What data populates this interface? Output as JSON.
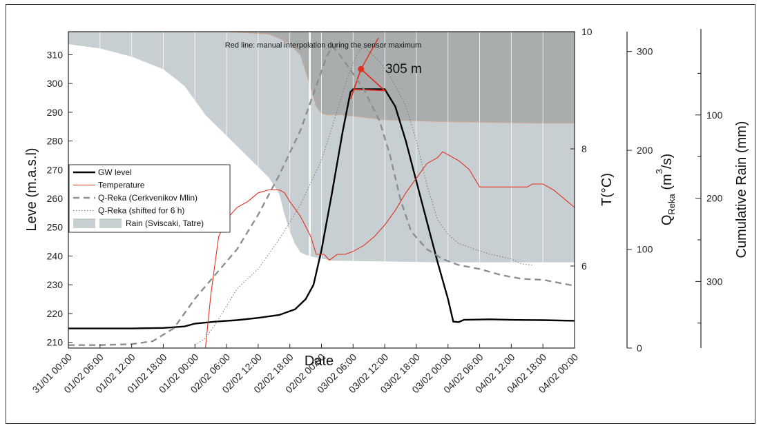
{
  "chart_data": {
    "type": "line",
    "x_axis": {
      "label": "Date",
      "tick_labels": [
        "31/01 00:00",
        "01/02 06:00",
        "01/02 12:00",
        "01/02 18:00",
        "01/02 00:00",
        "02/02 06:00",
        "02/02 12:00",
        "02/02 18:00",
        "02/02 00:00",
        "03/02 06:00",
        "03/02 12:00",
        "03/02 18:00",
        "03/02 00:00",
        "04/02 06:00",
        "04/02 12:00",
        "04/02 18:00",
        "04/02 00:00"
      ],
      "range_hours": [
        0,
        96
      ]
    },
    "y_left": {
      "label": "Leve (m.a.s.l)",
      "range": [
        208,
        318
      ],
      "ticks": [
        210,
        220,
        230,
        240,
        250,
        260,
        270,
        280,
        290,
        300,
        310
      ]
    },
    "y_temp": {
      "label": "T(°C)",
      "range": [
        4.6,
        10
      ],
      "ticks": [
        6,
        8,
        10
      ]
    },
    "y_q": {
      "label_main": "Q",
      "label_sub": "Reka",
      "label_unit_pre": " (m",
      "label_unit_sup": "3",
      "label_unit_post": "/s)",
      "range": [
        0,
        320
      ],
      "ticks": [
        0,
        100,
        200,
        300
      ]
    },
    "y_rain": {
      "label": "Cumulative Rain (mm)",
      "range": [
        0,
        380
      ],
      "reversed": true,
      "ticks": [
        100,
        200,
        300
      ]
    },
    "annotations": {
      "note": "Red line: manual interpolation during the sensor maximum",
      "peak_label": "305 m",
      "peak_point": {
        "x": 55.5,
        "y": 305
      }
    },
    "legend": {
      "placement": "left-middle",
      "entries": [
        "GW level",
        "Temperature",
        "Q-Reka (Cerkvenikov Mlin)",
        "Q-Reka (shifted  for 6 h)",
        "Rain (Sviscaki, Tatre)"
      ]
    },
    "series": [
      {
        "name": "GW level",
        "axis": "y_left",
        "color": "#000000",
        "points": [
          [
            0,
            214.8
          ],
          [
            6,
            214.8
          ],
          [
            12,
            214.8
          ],
          [
            18,
            215
          ],
          [
            22,
            215.5
          ],
          [
            24,
            216.5
          ],
          [
            28,
            217.2
          ],
          [
            32,
            217.7
          ],
          [
            36,
            218.5
          ],
          [
            40,
            219.5
          ],
          [
            43,
            221.5
          ],
          [
            45,
            225
          ],
          [
            46.5,
            230
          ],
          [
            48,
            242
          ],
          [
            50,
            262
          ],
          [
            52,
            283
          ],
          [
            53.5,
            297
          ],
          [
            54,
            298
          ],
          [
            60,
            298
          ],
          [
            62,
            292
          ],
          [
            64,
            280
          ],
          [
            66,
            266
          ],
          [
            68,
            252
          ],
          [
            70,
            238
          ],
          [
            72,
            225
          ],
          [
            73,
            217.2
          ],
          [
            74,
            217
          ],
          [
            75,
            217.8
          ],
          [
            80,
            218
          ],
          [
            84,
            217.8
          ],
          [
            90,
            217.7
          ],
          [
            96,
            217.5
          ]
        ]
      },
      {
        "name": "Manual interpolation",
        "axis": "y_left",
        "color": "#e03020",
        "points": [
          [
            53.5,
            294.5
          ],
          [
            55.5,
            305
          ],
          [
            60,
            297.5
          ],
          [
            54,
            298
          ]
        ]
      },
      {
        "name": "Temperature",
        "axis": "y_temp",
        "color": "#e03020",
        "points": [
          [
            26,
            4.6
          ],
          [
            27,
            5.5
          ],
          [
            28.5,
            6.5
          ],
          [
            30,
            6.8
          ],
          [
            32,
            7.0
          ],
          [
            34,
            7.1
          ],
          [
            36,
            7.25
          ],
          [
            38,
            7.3
          ],
          [
            40,
            7.3
          ],
          [
            41,
            7.25
          ],
          [
            42,
            7.1
          ],
          [
            44,
            6.85
          ],
          [
            46,
            6.5
          ],
          [
            47,
            6.2
          ],
          [
            48.5,
            6.2
          ],
          [
            49.5,
            6.1
          ],
          [
            51,
            6.2
          ],
          [
            52.5,
            6.2
          ],
          [
            54,
            6.25
          ],
          [
            56,
            6.35
          ],
          [
            58,
            6.5
          ],
          [
            60,
            6.7
          ],
          [
            62,
            6.95
          ],
          [
            64,
            7.25
          ],
          [
            66,
            7.5
          ],
          [
            68,
            7.75
          ],
          [
            70,
            7.85
          ],
          [
            71,
            7.95
          ],
          [
            72,
            7.9
          ],
          [
            73,
            7.85
          ],
          [
            74,
            7.8
          ],
          [
            76,
            7.65
          ],
          [
            78,
            7.35
          ],
          [
            80,
            7.35
          ],
          [
            84,
            7.35
          ],
          [
            87,
            7.35
          ],
          [
            88,
            7.4
          ],
          [
            90,
            7.4
          ],
          [
            92,
            7.3
          ],
          [
            94,
            7.15
          ],
          [
            96,
            7.0
          ]
        ]
      },
      {
        "name": "Q-Reka (Cerkvenikov Mlin)",
        "axis": "y_q",
        "color": "#8a8f91",
        "points": [
          [
            0,
            3
          ],
          [
            6,
            3
          ],
          [
            12,
            4
          ],
          [
            16,
            7
          ],
          [
            20,
            20
          ],
          [
            24,
            50
          ],
          [
            28,
            75
          ],
          [
            32,
            100
          ],
          [
            36,
            135
          ],
          [
            40,
            175
          ],
          [
            44,
            220
          ],
          [
            47,
            265
          ],
          [
            49,
            295
          ],
          [
            50,
            305
          ],
          [
            51,
            300
          ],
          [
            53,
            285
          ],
          [
            56,
            262
          ],
          [
            59,
            230
          ],
          [
            61,
            195
          ],
          [
            63,
            150
          ],
          [
            65,
            118
          ],
          [
            68,
            100
          ],
          [
            71,
            90
          ],
          [
            74,
            84
          ],
          [
            78,
            80
          ],
          [
            82,
            74
          ],
          [
            86,
            70
          ],
          [
            90,
            69
          ],
          [
            93,
            66
          ],
          [
            96,
            63
          ]
        ]
      },
      {
        "name": "Q-Reka (shifted  for 6 h)",
        "axis": "y_q",
        "color": "#777777",
        "points": [
          [
            24,
            3
          ],
          [
            26,
            10
          ],
          [
            28,
            25
          ],
          [
            32,
            60
          ],
          [
            36,
            80
          ],
          [
            40,
            110
          ],
          [
            44,
            145
          ],
          [
            48,
            190
          ],
          [
            51,
            240
          ],
          [
            53,
            275
          ],
          [
            55,
            300
          ],
          [
            56,
            305
          ],
          [
            57,
            300
          ],
          [
            59,
            290
          ],
          [
            61,
            275
          ],
          [
            64,
            245
          ],
          [
            66,
            210
          ],
          [
            68,
            165
          ],
          [
            70,
            130
          ],
          [
            72,
            115
          ],
          [
            74,
            106
          ],
          [
            77,
            100
          ],
          [
            80,
            95
          ],
          [
            84,
            90
          ],
          [
            86,
            85
          ],
          [
            88,
            84
          ]
        ]
      }
    ],
    "rain_areas": [
      {
        "name": "Rain (Sviscaki, Tatre)",
        "station": "Tatre",
        "axis": "y_rain",
        "color": "#c7cfd2",
        "points": [
          [
            0,
            15
          ],
          [
            6,
            20
          ],
          [
            12,
            30
          ],
          [
            18,
            45
          ],
          [
            22,
            65
          ],
          [
            26,
            100
          ],
          [
            30,
            125
          ],
          [
            34,
            150
          ],
          [
            38,
            175
          ],
          [
            40,
            195
          ],
          [
            41,
            220
          ],
          [
            42,
            240
          ],
          [
            43,
            255
          ],
          [
            44,
            265
          ],
          [
            45,
            268
          ],
          [
            46,
            270
          ],
          [
            50,
            275
          ],
          [
            60,
            276
          ],
          [
            70,
            277
          ],
          [
            80,
            277
          ],
          [
            90,
            277
          ],
          [
            96,
            277
          ]
        ]
      },
      {
        "name": "Rain (Sviscaki, Tatre)",
        "station": "Sviscaki",
        "axis": "y_rain",
        "color": "#a9adae",
        "points": [
          [
            0,
            0
          ],
          [
            6,
            0
          ],
          [
            12,
            0
          ],
          [
            20,
            0
          ],
          [
            30,
            0
          ],
          [
            38,
            3
          ],
          [
            40,
            8
          ],
          [
            42,
            15
          ],
          [
            44,
            28
          ],
          [
            45,
            48
          ],
          [
            46,
            68
          ],
          [
            47,
            90
          ],
          [
            48,
            98
          ],
          [
            49,
            100
          ],
          [
            52,
            100
          ],
          [
            60,
            106
          ],
          [
            70,
            108
          ],
          [
            80,
            109
          ],
          [
            90,
            110
          ],
          [
            96,
            110
          ]
        ]
      }
    ]
  }
}
